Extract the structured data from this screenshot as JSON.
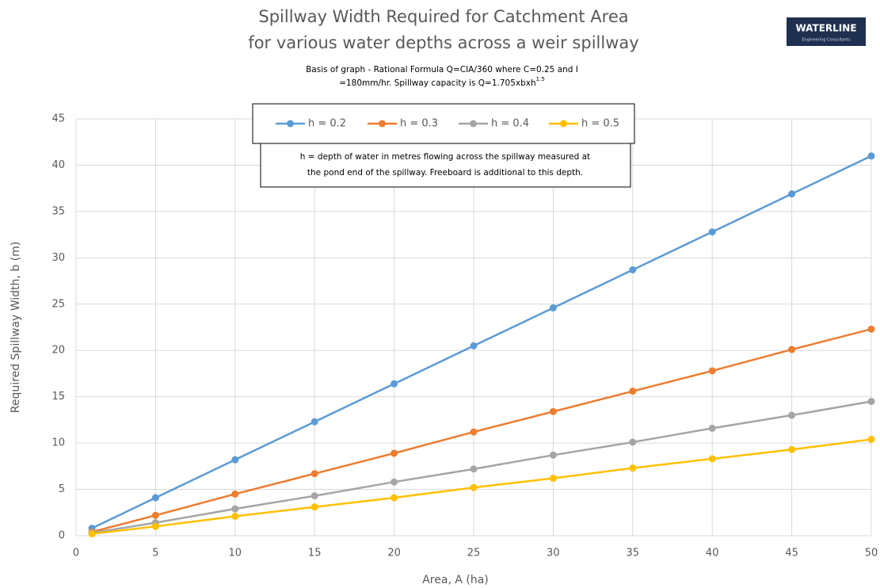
{
  "chart_data": {
    "type": "line",
    "title": [
      "Spillway Width Required for Catchment Area",
      "for various water depths across a weir spillway"
    ],
    "subtitle": [
      "Basis of graph - Rational Formula Q=CIA/360 where C=0.25 and I",
      "=180mm/hr. Spillway capacity is Q=1.705xbxh"
    ],
    "subtitle_superscript": "1.5",
    "annotation": [
      "h =  depth of water in metres flowing across the spillway measured at",
      "the pond end of the spillway. Freeboard is additional to this depth."
    ],
    "logo": {
      "name": "WATERLINE",
      "tagline": "Engineering Consultants"
    },
    "xlabel": "Area, A (ha)",
    "ylabel": "Required Spillway Width, b (m)",
    "x": [
      1,
      5,
      10,
      15,
      20,
      25,
      30,
      35,
      40,
      45,
      50
    ],
    "series": [
      {
        "name": "h = 0.2",
        "color": "#5b9bd5",
        "values": [
          0.8,
          4.1,
          8.2,
          12.3,
          16.4,
          20.5,
          24.6,
          28.7,
          32.8,
          36.9,
          41.0
        ]
      },
      {
        "name": "h = 0.3",
        "color": "#ed7d31",
        "values": [
          0.4,
          2.2,
          4.5,
          6.7,
          8.9,
          11.2,
          13.4,
          15.6,
          17.8,
          20.1,
          22.3
        ]
      },
      {
        "name": "h = 0.4",
        "color": "#a5a5a5",
        "values": [
          0.3,
          1.4,
          2.9,
          4.3,
          5.8,
          7.2,
          8.7,
          10.1,
          11.6,
          13.0,
          14.5
        ]
      },
      {
        "name": "h = 0.5",
        "color": "#ffc000",
        "values": [
          0.2,
          1.0,
          2.1,
          3.1,
          4.1,
          5.2,
          6.2,
          7.3,
          8.3,
          9.3,
          10.4
        ]
      }
    ],
    "xlim": [
      0,
      50
    ],
    "xticks": [
      0,
      5,
      10,
      15,
      20,
      25,
      30,
      35,
      40,
      45,
      50
    ],
    "ylim": [
      0,
      45
    ],
    "yticks": [
      0,
      5,
      10,
      15,
      20,
      25,
      30,
      35,
      40,
      45
    ],
    "grid": true,
    "legend": "top"
  }
}
